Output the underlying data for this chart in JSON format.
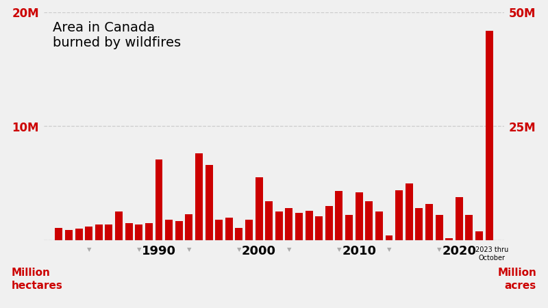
{
  "title": "Area in Canada\nburned by wildfires",
  "title_fontsize": 14,
  "bar_color": "#cc0000",
  "background_color": "#f0f0f0",
  "left_ylabel": "Million\nhectares",
  "right_ylabel": "Million\nacres",
  "annotation_2023": "2023 thru\nOctober",
  "years": [
    1980,
    1981,
    1982,
    1983,
    1984,
    1985,
    1986,
    1987,
    1988,
    1989,
    1990,
    1991,
    1992,
    1993,
    1994,
    1995,
    1996,
    1997,
    1998,
    1999,
    2000,
    2001,
    2002,
    2003,
    2004,
    2005,
    2006,
    2007,
    2008,
    2009,
    2010,
    2011,
    2012,
    2013,
    2014,
    2015,
    2016,
    2017,
    2018,
    2019,
    2020,
    2021,
    2022,
    2023
  ],
  "values_hectares": [
    1.1,
    0.9,
    1.0,
    1.2,
    1.4,
    1.4,
    2.5,
    1.5,
    1.4,
    1.5,
    7.1,
    1.8,
    1.7,
    2.3,
    7.6,
    6.6,
    1.8,
    2.0,
    1.1,
    1.8,
    5.5,
    3.4,
    2.5,
    2.8,
    2.4,
    2.6,
    2.1,
    3.0,
    4.3,
    2.2,
    4.2,
    3.4,
    2.5,
    0.4,
    4.4,
    5.0,
    2.8,
    3.2,
    2.2,
    0.18,
    3.8,
    2.2,
    0.8,
    18.4
  ],
  "ylim_left": [
    0,
    20
  ],
  "ylim_right": [
    0,
    50
  ],
  "yticks_left": [
    0,
    10,
    20
  ],
  "ytick_labels_left": [
    "",
    "10M",
    "20M"
  ],
  "yticks_right": [
    0,
    25,
    50
  ],
  "ytick_labels_right": [
    "",
    "25M",
    "50M"
  ],
  "xtick_years": [
    1990,
    2000,
    2010,
    2020
  ],
  "triangle_years": [
    1983,
    1988,
    1993,
    1998,
    2003,
    2008,
    2013,
    2018,
    2023
  ],
  "grid_color": "#cccccc",
  "red_color": "#cc0000",
  "axis_line_color": "#999999"
}
